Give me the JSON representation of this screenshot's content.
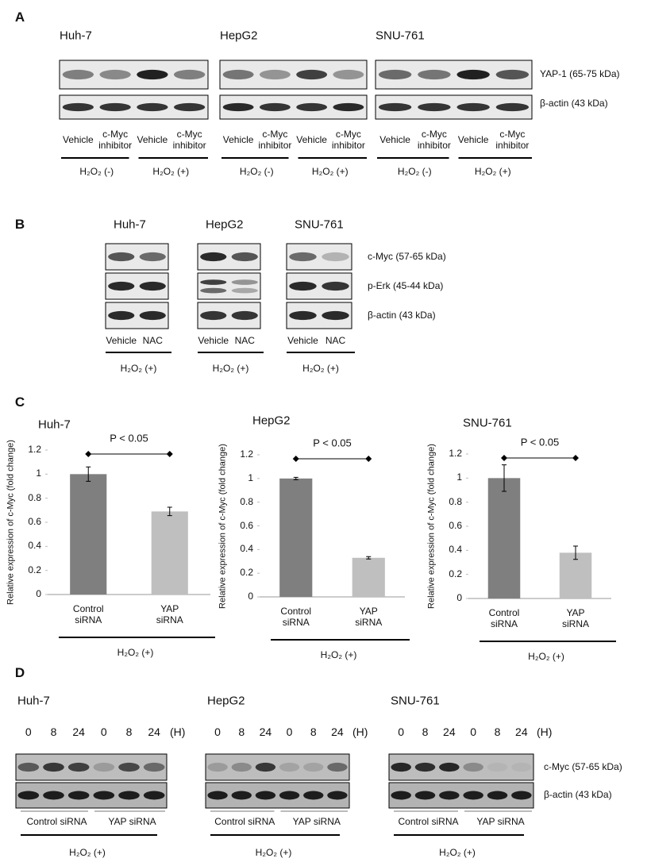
{
  "panel_labels": [
    "A",
    "B",
    "C",
    "D"
  ],
  "panel_a": {
    "cells": [
      "Huh-7",
      "HepG2",
      "SNU-761"
    ],
    "blots": [
      "YAP-1 (65-75 kDa)",
      "β-actin (43 kDa)"
    ],
    "lanes": [
      "Vehicle",
      "c-Myc inhibitor"
    ],
    "groups": [
      "H₂O₂ (-)",
      "H₂O₂ (+)"
    ]
  },
  "panel_b": {
    "cells": [
      "Huh-7",
      "HepG2",
      "SNU-761"
    ],
    "blots": [
      "c-Myc (57-65 kDa)",
      "p-Erk (45-44 kDa)",
      "β-actin (43 kDa)"
    ],
    "lanes": [
      "Vehicle",
      "NAC"
    ],
    "group": "H₂O₂ (+)"
  },
  "chart_data": [
    {
      "type": "bar",
      "title": "Huh-7",
      "ylabel": "Relative expression of c-Myc (fold change)",
      "categories": [
        "Control siRNA",
        "YAP siRNA"
      ],
      "values": [
        1.0,
        0.69
      ],
      "errors": [
        0.06,
        0.035
      ],
      "colors": [
        "#7f7f7f",
        "#bfbfbf"
      ],
      "ylim": [
        0,
        1.2
      ],
      "yticks": [
        0,
        0.2,
        0.4,
        0.6,
        0.8,
        1,
        1.2
      ],
      "annotation": "P < 0.05",
      "group": "H₂O₂ (+)"
    },
    {
      "type": "bar",
      "title": "HepG2",
      "ylabel": "Relative expression of c-Myc (fold change)",
      "categories": [
        "Control siRNA",
        "YAP siRNA"
      ],
      "values": [
        1.0,
        0.33
      ],
      "errors": [
        0.01,
        0.01
      ],
      "colors": [
        "#7f7f7f",
        "#bfbfbf"
      ],
      "ylim": [
        0,
        1.2
      ],
      "yticks": [
        0,
        0.2,
        0.4,
        0.6,
        0.8,
        1,
        1.2
      ],
      "annotation": "P < 0.05",
      "group": "H₂O₂ (+)"
    },
    {
      "type": "bar",
      "title": "SNU-761",
      "ylabel": "Relative expression of c-Myc (fold change)",
      "categories": [
        "Control siRNA",
        "YAP siRNA"
      ],
      "values": [
        1.0,
        0.38
      ],
      "errors": [
        0.11,
        0.055
      ],
      "colors": [
        "#7f7f7f",
        "#bfbfbf"
      ],
      "ylim": [
        0,
        1.2
      ],
      "yticks": [
        0,
        0.2,
        0.4,
        0.6,
        0.8,
        1,
        1.2
      ],
      "annotation": "P < 0.05",
      "group": "H₂O₂ (+)"
    }
  ],
  "panel_d": {
    "cells": [
      "Huh-7",
      "HepG2",
      "SNU-761"
    ],
    "timepoints": [
      0,
      8,
      24,
      0,
      8,
      24
    ],
    "unit": "(H)",
    "blots": [
      "c-Myc (57-65 kDa)",
      "β-actin (43 kDa)"
    ],
    "groups": [
      "Control siRNA",
      "YAP siRNA"
    ],
    "condition": "H₂O₂ (+)"
  }
}
